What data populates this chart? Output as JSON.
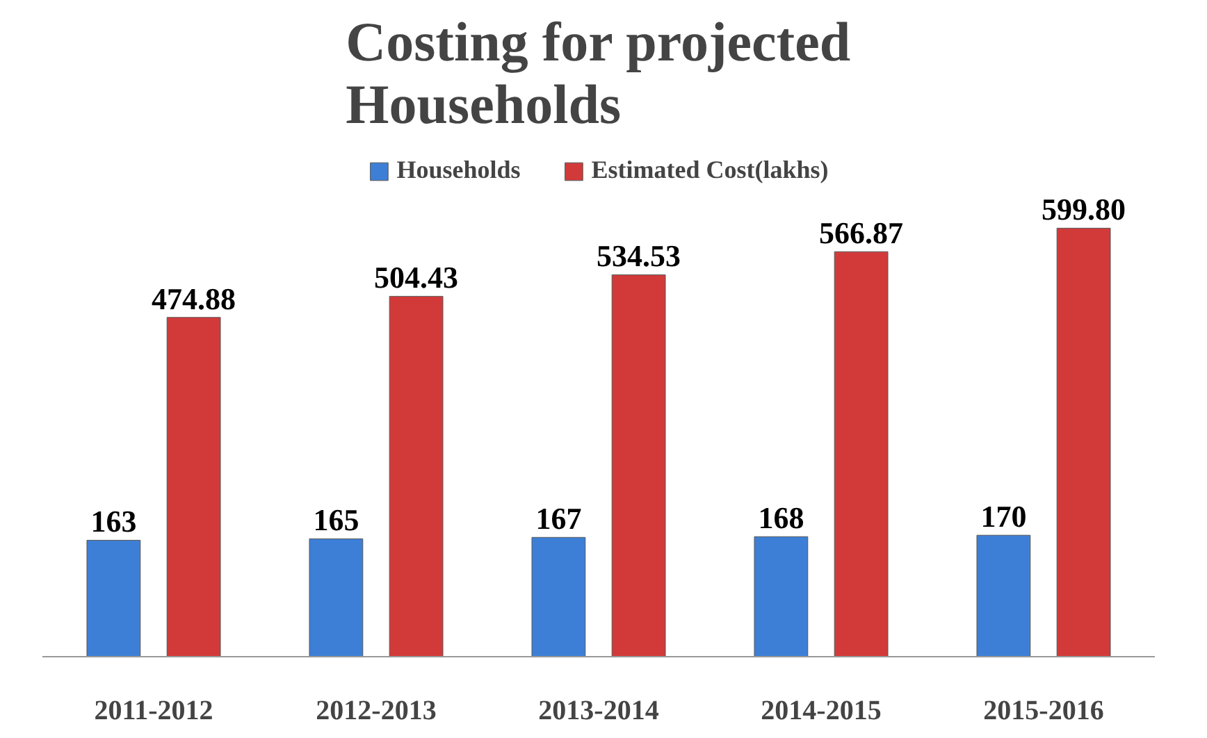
{
  "chart_data": {
    "type": "bar",
    "title": "Costing for projected\nHouseholds",
    "categories": [
      "2011-2012",
      "2012-2013",
      "2013-2014",
      "2014-2015",
      "2015-2016"
    ],
    "series": [
      {
        "name": "Households",
        "color": "#3d7fd6",
        "values": [
          163,
          165,
          167,
          168,
          170
        ],
        "value_labels": [
          "163",
          "165",
          "167",
          "168",
          "170"
        ]
      },
      {
        "name": "Estimated Cost(lakhs)",
        "color": "#d23a3a",
        "values": [
          474.88,
          504.43,
          534.53,
          566.87,
          599.8
        ],
        "value_labels": [
          "474.88",
          "504.43",
          "534.53",
          "566.87",
          "599.80"
        ]
      }
    ],
    "legend": "top"
  }
}
